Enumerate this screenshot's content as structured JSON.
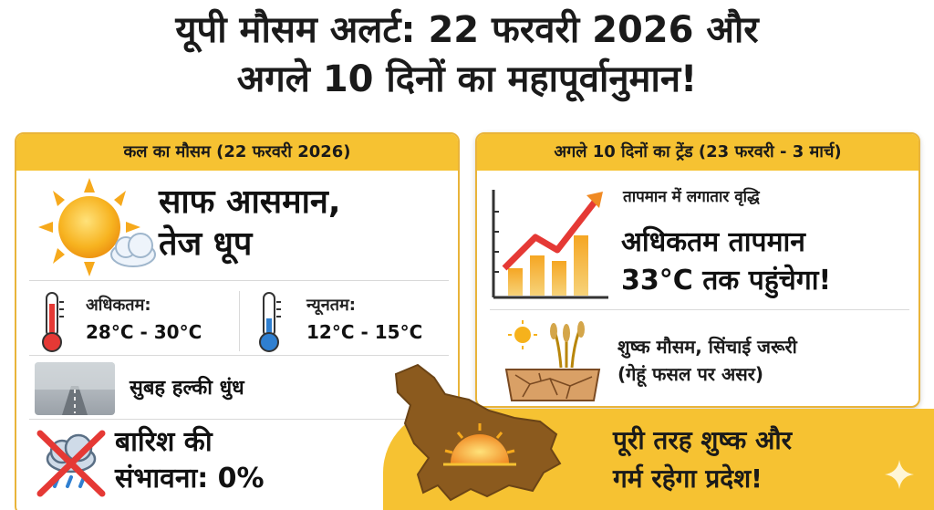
{
  "header": {
    "title_line1": "यूपी मौसम अलर्ट: 22 फरवरी 2026 और",
    "title_line2": "अगले 10 दिनों का महापूर्वानुमान!"
  },
  "tomorrow": {
    "heading": "कल का मौसम (22 फरवरी 2026)",
    "condition_line1": "साफ आसमान,",
    "condition_line2": "तेज धूप",
    "max_label": "अधिकतम:",
    "max_value": "28°C - 30°C",
    "min_label": "न्यूनतम:",
    "min_value": "12°C - 15°C",
    "fog_text": "सुबह हल्की धुंध",
    "rain_line1": "बारिश की",
    "rain_line2": "संभावना: 0%"
  },
  "trend": {
    "heading": "अगले 10 दिनों का ट्रेंड (23 फरवरी - 3 मार्च)",
    "sub": "तापमान में लगातार वृद्धि",
    "main_line1": "अधिकतम तापमान",
    "main_line2": "33°C तक पहुंचेगा!",
    "dry_line1": "शुष्क मौसम, सिंचाई जरूरी",
    "dry_line2": "(गेहूं फसल पर असर)"
  },
  "banner": {
    "line1": "पूरी तरह शुष्क और",
    "line2": "गर्म रहेगा प्रदेश!"
  },
  "icons": [
    "sun-cloud-icon",
    "thermometer-hot-icon",
    "thermometer-cold-icon",
    "fog-road-icon",
    "no-rain-icon",
    "rising-chart-icon",
    "dry-soil-icon",
    "up-map-sunset-icon",
    "sparkle-icon"
  ],
  "colors": {
    "accent": "#f6c232",
    "border": "#e9b43a",
    "hot": "#e53935",
    "cold": "#2f7fd0",
    "arrow": "#f08a24",
    "map": "#8b5a1e"
  }
}
